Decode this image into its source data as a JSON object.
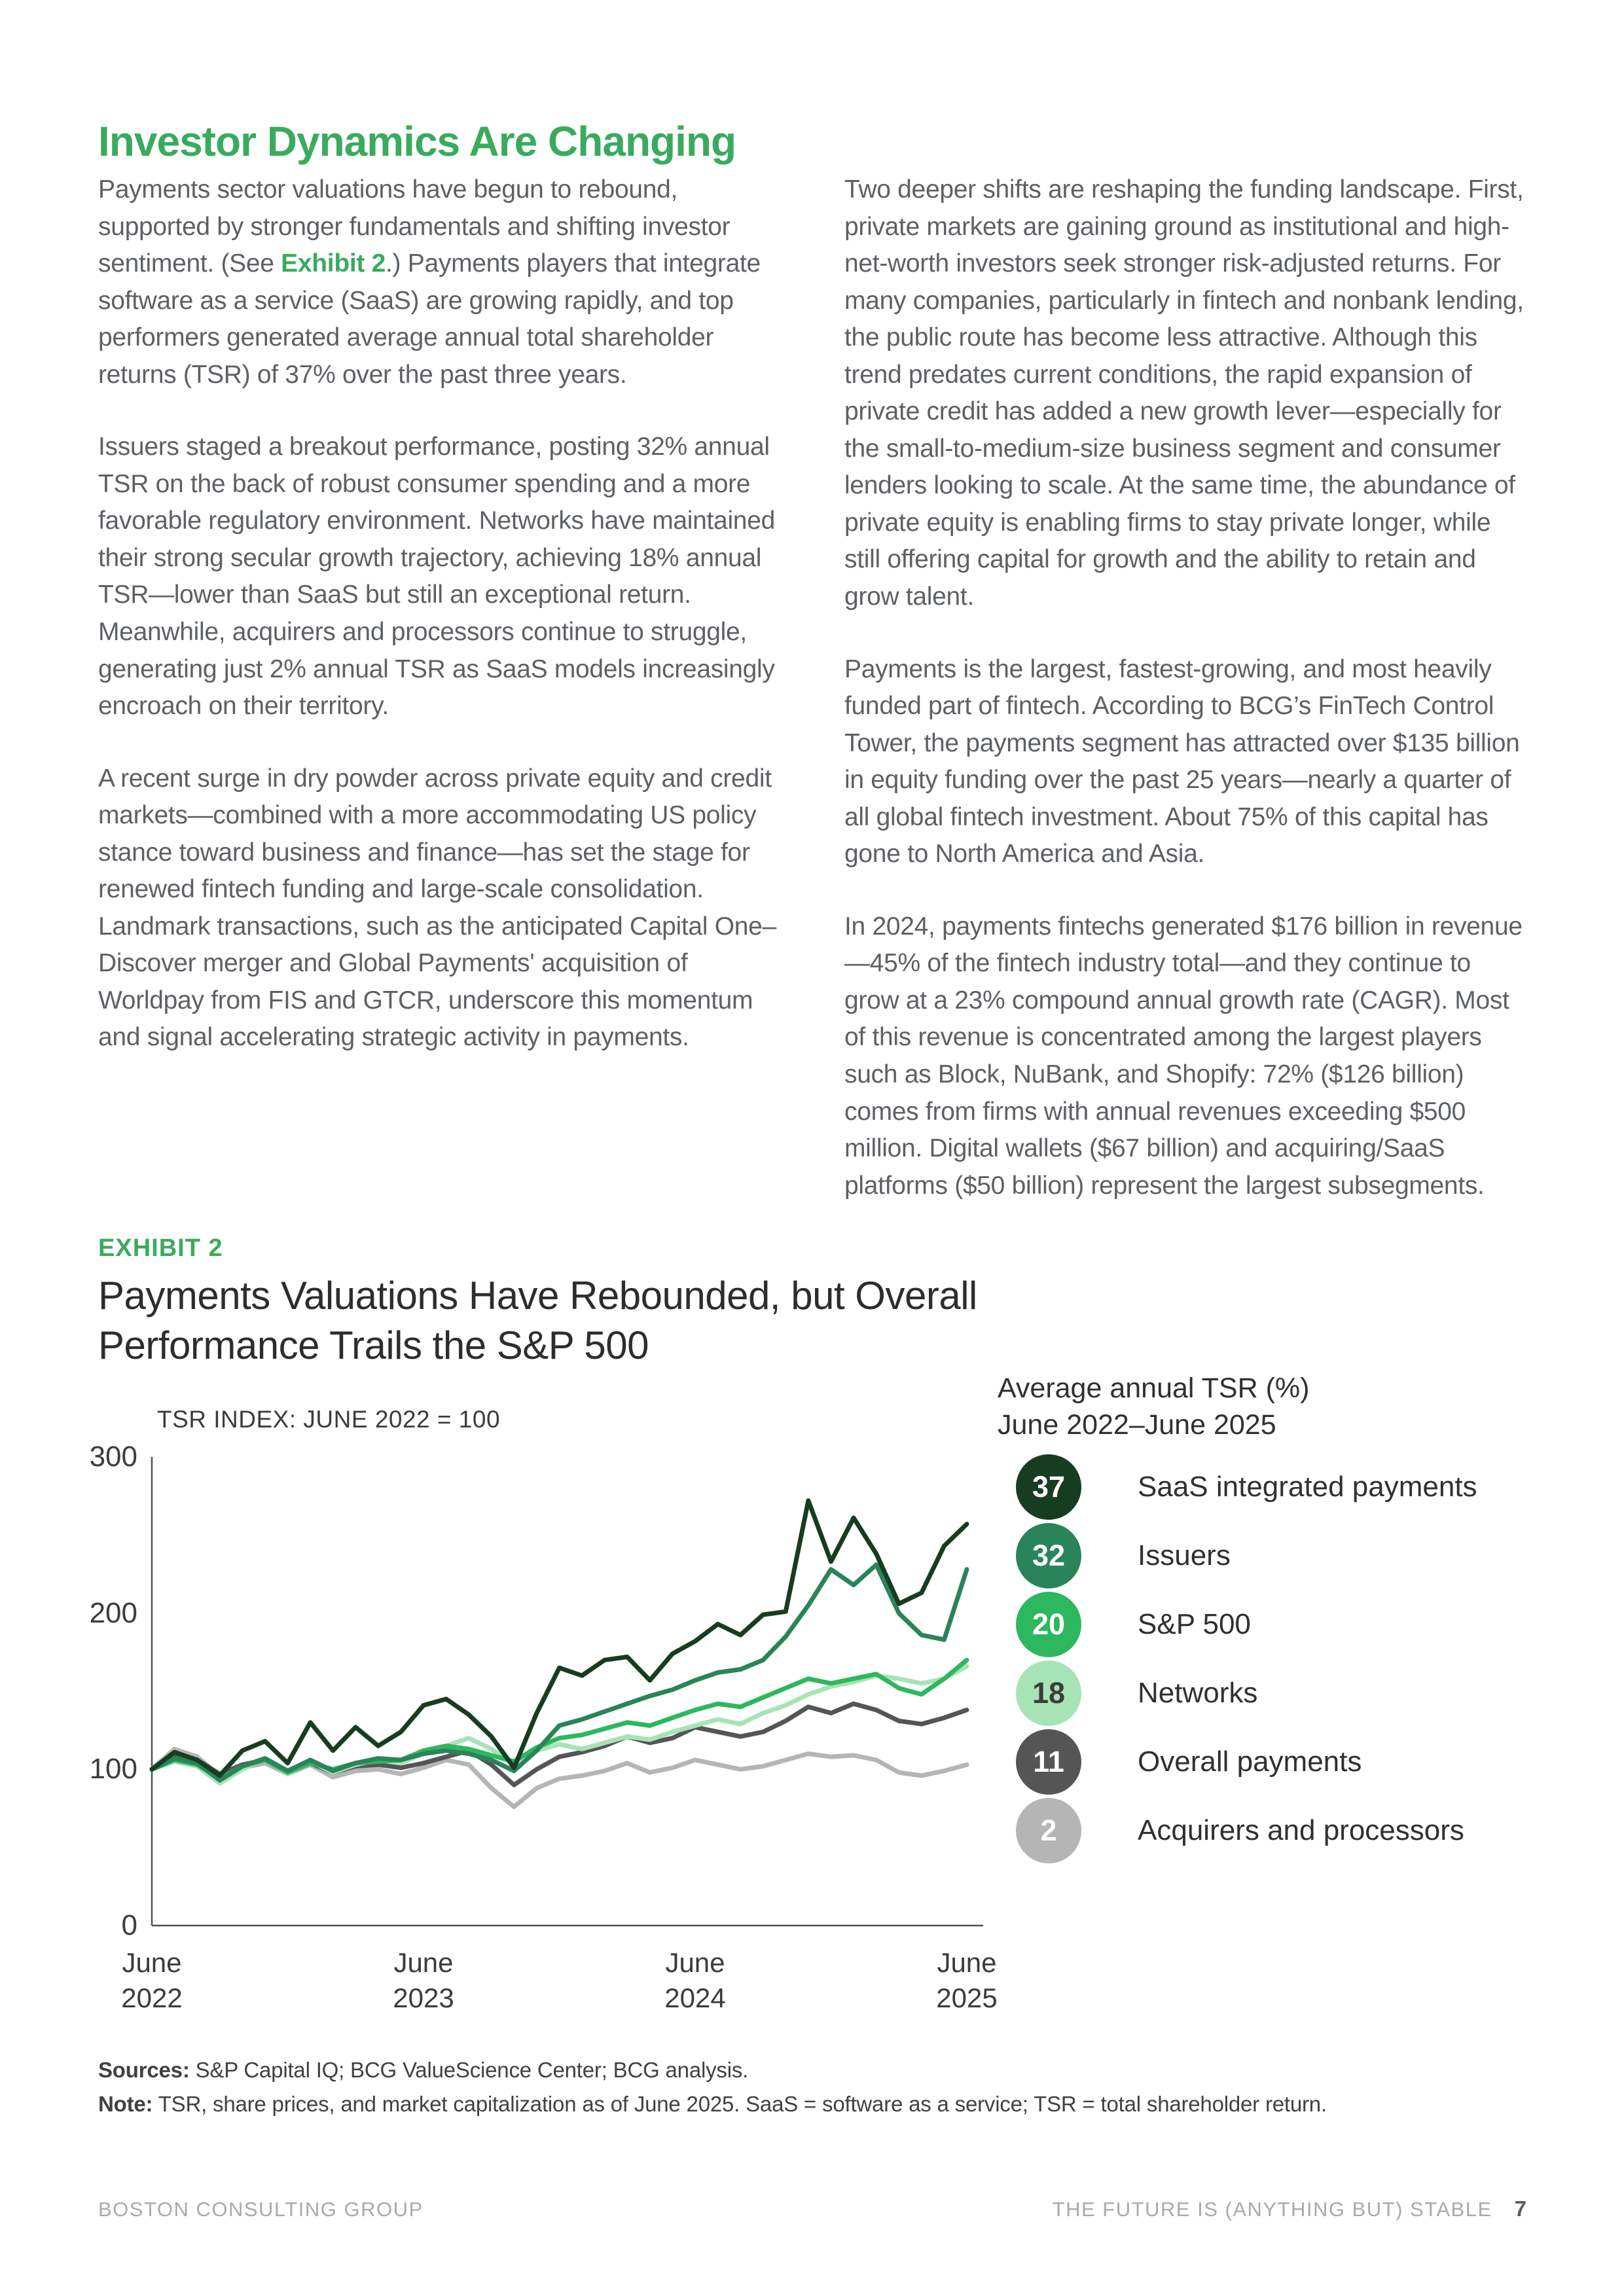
{
  "page": {
    "title": "Investor Dynamics Are Changing",
    "footer_left": "BOSTON CONSULTING GROUP",
    "footer_right": "THE FUTURE IS (ANYTHING BUT) STABLE",
    "page_number": "7"
  },
  "columns": {
    "left": [
      {
        "before": "Payments sector valuations have begun to rebound, supported by stronger fundamentals and shifting investor sentiment. (See ",
        "link": "Exhibit 2",
        "after": ".) Payments players that integrate software as a service (SaaS) are growing rapidly, and top performers generated average annual total shareholder returns (TSR) of 37% over the past three years."
      },
      {
        "text": "Issuers staged a breakout performance, posting 32% annual TSR on the back of robust consumer spending and a more favorable regulatory environment. Networks have maintained their strong secular growth trajectory, achieving 18% annual TSR—lower than SaaS but still an exceptional return. Meanwhile, acquirers and processors continue to struggle, generating just 2% annual TSR as SaaS models increasingly encroach on their territory."
      },
      {
        "text": "A recent surge in dry powder across private equity and credit markets—combined with a more accommodating US policy stance toward business and finance—has set the stage for renewed fintech funding and large-scale consolidation. Landmark transactions, such as the anticipated Capital One–Discover merger and Global Payments' acquisition of Worldpay from FIS and GTCR, underscore this momentum and signal accelerating strategic activity in payments."
      }
    ],
    "right": [
      {
        "text": "Two deeper shifts are reshaping the funding landscape. First, private markets are gaining ground as institutional and high-net-worth investors seek stronger risk-adjusted returns. For many companies, particularly in fintech and nonbank lending, the public route has become less attractive. Although this trend predates current conditions, the rapid expansion of private credit has added a new growth lever—especially for the small-to-medium-size business segment and consumer lenders looking to scale. At the same time, the abundance of private equity is enabling firms to stay private longer, while still offering capital for growth and the ability to retain and grow talent."
      },
      {
        "text": "Payments is the largest, fastest-growing, and most heavily funded part of fintech. According to BCG’s FinTech Control Tower, the payments segment has attracted over $135 billion in equity funding over the past 25 years—nearly a quarter of all global fintech investment. About 75% of this capital has gone to North America and Asia."
      },
      {
        "text": "In 2024, payments fintechs generated $176 billion in revenue—45% of the fintech industry total—and they continue to grow at a 23% compound annual growth rate (CAGR). Most of this revenue is concentrated among the largest players such as Block, NuBank, and Shopify: 72% ($126 billion) comes from firms with annual revenues exceeding $500 million. Digital wallets ($67 billion) and acquiring/SaaS platforms ($50 billion) represent the largest subsegments."
      }
    ]
  },
  "exhibit": {
    "label": "EXHIBIT 2",
    "title": "Payments Valuations Have Rebounded, but Overall Performance Trails the S&P 500",
    "sources_label": "Sources:",
    "sources_text": " S&P Capital IQ; BCG ValueScience Center; BCG analysis.",
    "note_label": "Note:",
    "note_text": " TSR, share prices, and market capitalization as of June 2025. SaaS = software as a service; TSR = total shareholder return."
  },
  "chart_data": {
    "type": "line",
    "title": "TSR INDEX: JUNE 2022 = 100",
    "legend_header_line1": "Average annual TSR (%)",
    "legend_header_line2": "June 2022–June 2025",
    "xlabel": "",
    "ylabel": "",
    "ylim": [
      0,
      300
    ],
    "y_ticks": [
      0,
      100,
      200,
      300
    ],
    "x_tick_months": [
      0,
      12,
      24,
      36
    ],
    "x_tick_labels": [
      [
        "June",
        "2022"
      ],
      [
        "June",
        "2023"
      ],
      [
        "June",
        "2024"
      ],
      [
        "June",
        "2025"
      ]
    ],
    "months_total": 36,
    "grid": false,
    "legend_position": "right",
    "series": [
      {
        "name": "SaaS integrated payments",
        "avg_annual_tsr": 37,
        "color": "#173d20",
        "badge_dark_text": false,
        "values": [
          100,
          111,
          106,
          96,
          112,
          118,
          104,
          130,
          112,
          127,
          115,
          124,
          141,
          145,
          135,
          121,
          101,
          136,
          165,
          160,
          170,
          172,
          157,
          174,
          182,
          193,
          186,
          199,
          201,
          272,
          233,
          261,
          238,
          206,
          213,
          243,
          257
        ]
      },
      {
        "name": "Issuers",
        "avg_annual_tsr": 32,
        "color": "#2a845a",
        "badge_dark_text": false,
        "values": [
          100,
          107,
          104,
          93,
          102,
          107,
          99,
          106,
          99,
          104,
          107,
          106,
          110,
          112,
          110,
          106,
          99,
          112,
          128,
          132,
          137,
          142,
          147,
          151,
          157,
          162,
          164,
          170,
          185,
          205,
          228,
          218,
          231,
          200,
          186,
          183,
          228
        ]
      },
      {
        "name": "S&P 500",
        "avg_annual_tsr": 20,
        "color": "#2db75f",
        "badge_dark_text": false,
        "values": [
          100,
          106,
          103,
          94,
          102,
          106,
          98,
          104,
          100,
          104,
          105,
          106,
          112,
          115,
          113,
          109,
          105,
          114,
          120,
          122,
          126,
          130,
          128,
          133,
          138,
          142,
          140,
          146,
          152,
          158,
          155,
          158,
          161,
          152,
          148,
          158,
          170
        ]
      },
      {
        "name": "Networks",
        "avg_annual_tsr": 18,
        "color": "#a7e4b5",
        "badge_dark_text": true,
        "values": [
          100,
          105,
          102,
          91,
          100,
          107,
          97,
          105,
          98,
          103,
          106,
          104,
          110,
          115,
          120,
          113,
          103,
          112,
          116,
          113,
          117,
          121,
          119,
          124,
          128,
          132,
          129,
          136,
          141,
          148,
          153,
          156,
          160,
          158,
          155,
          158,
          166
        ]
      },
      {
        "name": "Overall payments",
        "avg_annual_tsr": 11,
        "color": "#555555",
        "badge_dark_text": false,
        "values": [
          100,
          110,
          106,
          97,
          103,
          106,
          99,
          104,
          98,
          102,
          103,
          101,
          104,
          108,
          112,
          103,
          90,
          100,
          108,
          111,
          115,
          121,
          117,
          120,
          127,
          124,
          121,
          124,
          131,
          140,
          136,
          142,
          138,
          131,
          129,
          133,
          138
        ]
      },
      {
        "name": "Acquirers and processors",
        "avg_annual_tsr": 2,
        "color": "#b5b5b5",
        "badge_dark_text": false,
        "values": [
          100,
          113,
          108,
          96,
          101,
          104,
          97,
          103,
          95,
          99,
          100,
          97,
          101,
          106,
          103,
          88,
          76,
          88,
          94,
          96,
          99,
          104,
          98,
          101,
          106,
          103,
          100,
          102,
          106,
          110,
          108,
          109,
          106,
          98,
          96,
          99,
          103
        ]
      }
    ]
  }
}
